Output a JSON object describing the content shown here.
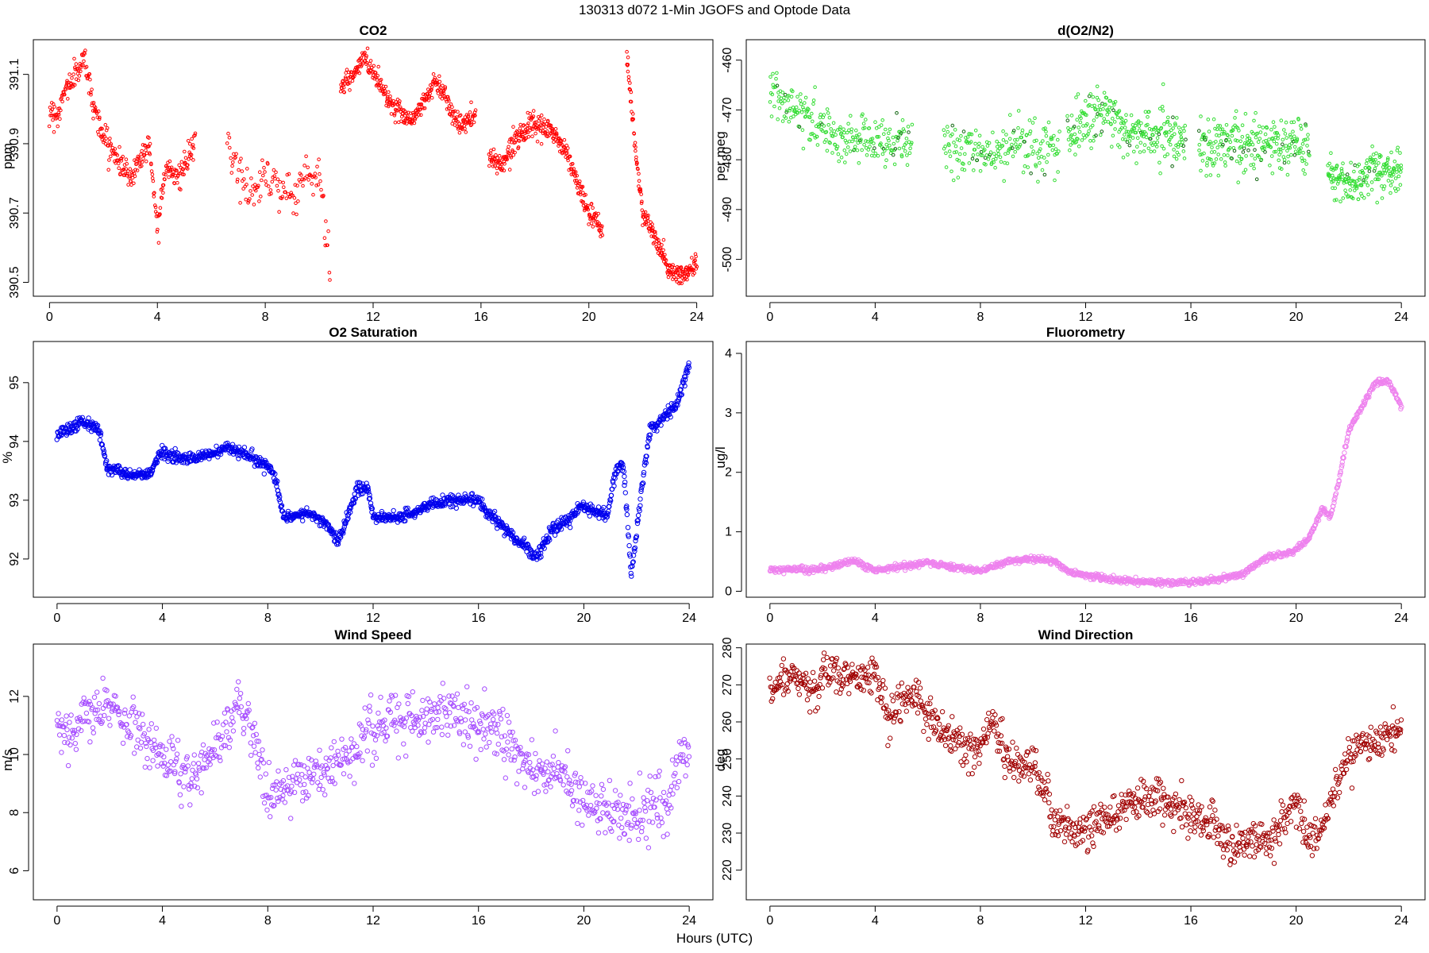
{
  "title": "130313   d072   1-Min  JGOFS and Optode Data",
  "xlabel": "Hours (UTC)",
  "chart_data": [
    {
      "type": "scatter",
      "title": "CO2",
      "ylabel": "ppm",
      "color": "#ff0000",
      "xlim": [
        -0.6,
        24.6
      ],
      "ylim": [
        390.46,
        391.2
      ],
      "xticks": [
        0,
        4,
        8,
        12,
        16,
        20,
        24
      ],
      "yticks": [
        390.5,
        390.7,
        390.9,
        391.1
      ],
      "ytick_labels": [
        "390.5",
        "390.7",
        "390.9",
        "391.1"
      ],
      "ylabels_rotated": true,
      "segments": [
        {
          "x": [
            0.0,
            0.3,
            0.6,
            1.0,
            1.3,
            1.6,
            2.0,
            2.5,
            3.0,
            3.3,
            3.7,
            4.0,
            4.3,
            4.8,
            5.4
          ],
          "y": [
            391.0,
            390.98,
            391.06,
            391.1,
            391.15,
            391.02,
            390.92,
            390.86,
            390.8,
            390.85,
            390.9,
            390.66,
            390.84,
            390.8,
            390.9
          ],
          "noise": 0.03,
          "n": 320
        },
        {
          "x": [
            6.6,
            7.0,
            7.5,
            8.0,
            8.5,
            9.0,
            9.5,
            10.0,
            10.4
          ],
          "y": [
            390.9,
            390.82,
            390.75,
            390.82,
            390.78,
            390.74,
            390.82,
            390.8,
            390.56
          ],
          "noise": 0.05,
          "n": 130
        },
        {
          "x": [
            10.8,
            11.3,
            11.7,
            12.2,
            12.8,
            13.5,
            14.3,
            14.6,
            15.2,
            15.8
          ],
          "y": [
            391.06,
            391.1,
            391.15,
            391.08,
            391.0,
            390.97,
            391.08,
            391.05,
            390.95,
            390.98
          ],
          "noise": 0.025,
          "n": 330
        },
        {
          "x": [
            16.3,
            16.8,
            17.3,
            17.8,
            18.6,
            19.2,
            19.6,
            20.0,
            20.5
          ],
          "y": [
            390.86,
            390.84,
            390.92,
            390.95,
            390.94,
            390.87,
            390.78,
            390.7,
            390.65
          ],
          "noise": 0.025,
          "n": 300
        },
        {
          "x": [
            21.4,
            21.7,
            22.0,
            22.5,
            23.0,
            23.5,
            24.0
          ],
          "y": [
            391.17,
            390.9,
            390.7,
            390.62,
            390.53,
            390.52,
            390.55
          ],
          "noise": 0.025,
          "n": 210
        }
      ]
    },
    {
      "type": "scatter",
      "title": "d(O2/N2)",
      "ylabel": "per meg",
      "color": "#33dd33",
      "highlight_color": "#116611",
      "xlim": [
        -0.9,
        24.9
      ],
      "ylim": [
        -507.4,
        -455.9
      ],
      "xticks": [
        0,
        4,
        8,
        12,
        16,
        20,
        24
      ],
      "yticks": [
        -500,
        -490,
        -480,
        -470,
        -460
      ],
      "ytick_labels": [
        "-500",
        "-490",
        "-480",
        "-470",
        "-460"
      ],
      "ylabels_rotated": true,
      "segments": [
        {
          "x": [
            0.0,
            1.0,
            2.0,
            3.0,
            4.0,
            5.4
          ],
          "y": [
            -466,
            -470,
            -474,
            -476,
            -476,
            -477
          ],
          "noise": 4,
          "n": 260
        },
        {
          "x": [
            6.6,
            8.0,
            10.0,
            11.0
          ],
          "y": [
            -478,
            -478,
            -477,
            -478
          ],
          "noise": 4.5,
          "n": 190
        },
        {
          "x": [
            11.3,
            12.5,
            13.5,
            15.0,
            15.8
          ],
          "y": [
            -476,
            -470,
            -474,
            -475,
            -476
          ],
          "noise": 4.5,
          "n": 260
        },
        {
          "x": [
            16.3,
            17.5,
            18.5,
            20.0,
            20.5
          ],
          "y": [
            -477,
            -477,
            -477,
            -477,
            -478
          ],
          "noise": 4.5,
          "n": 250
        },
        {
          "x": [
            21.2,
            22.0,
            23.0,
            24.0
          ],
          "y": [
            -483,
            -485,
            -482,
            -482
          ],
          "noise": 3.5,
          "n": 190
        }
      ]
    },
    {
      "type": "scatter",
      "title": "O2 Saturation",
      "ylabel": "%",
      "color": "#0000ee",
      "xlim": [
        -0.9,
        24.9
      ],
      "ylim": [
        91.35,
        95.7
      ],
      "xticks": [
        0,
        4,
        8,
        12,
        16,
        20,
        24
      ],
      "yticks": [
        92,
        93,
        94,
        95
      ],
      "ytick_labels": [
        "92",
        "93",
        "94",
        "95"
      ],
      "ylabels_rotated": true,
      "segments": [
        {
          "x": [
            0.0,
            1.0,
            1.6,
            1.9,
            3.0,
            3.6,
            3.9,
            5.0,
            6.0,
            6.5,
            7.5,
            8.2,
            8.6,
            9.5,
            10.2,
            10.7,
            11.0,
            11.4,
            11.8,
            12.0,
            13.0,
            14.0,
            15.0,
            16.0,
            16.3,
            16.8,
            17.5,
            18.2,
            18.8,
            19.5,
            19.9,
            20.3,
            20.9,
            21.2,
            21.5,
            21.8,
            22.0,
            22.5,
            23.0,
            23.5,
            24.0
          ],
          "y": [
            94.1,
            94.35,
            94.2,
            93.55,
            93.4,
            93.5,
            93.8,
            93.7,
            93.8,
            93.9,
            93.7,
            93.5,
            92.7,
            92.8,
            92.6,
            92.3,
            92.7,
            93.2,
            93.2,
            92.7,
            92.7,
            92.9,
            93.0,
            93.0,
            92.8,
            92.6,
            92.3,
            92.05,
            92.5,
            92.7,
            92.9,
            92.85,
            92.75,
            93.5,
            93.6,
            91.7,
            92.5,
            94.2,
            94.4,
            94.6,
            95.3
          ],
          "noise": 0.08,
          "n": 1400
        }
      ]
    },
    {
      "type": "scatter",
      "title": "Fluorometry",
      "ylabel": "ug/l",
      "color": "#ee82ee",
      "xlim": [
        -0.9,
        24.9
      ],
      "ylim": [
        -0.1,
        4.2
      ],
      "xticks": [
        0,
        4,
        8,
        12,
        16,
        20,
        24
      ],
      "yticks": [
        0,
        1,
        2,
        3,
        4
      ],
      "ytick_labels": [
        "0",
        "1",
        "2",
        "3",
        "4"
      ],
      "ylabels_rotated": false,
      "segments": [
        {
          "x": [
            0.0,
            2.0,
            3.2,
            4.0,
            5.0,
            6.0,
            7.0,
            8.0,
            9.0,
            10.0,
            10.8,
            11.5,
            12.0,
            13.0,
            14.0,
            15.0,
            16.0,
            17.0,
            18.0,
            18.8,
            19.5,
            20.0,
            20.5,
            21.0,
            21.3,
            21.6,
            22.0,
            22.5,
            23.0,
            23.5,
            24.0
          ],
          "y": [
            0.37,
            0.37,
            0.52,
            0.35,
            0.42,
            0.48,
            0.4,
            0.34,
            0.5,
            0.55,
            0.5,
            0.3,
            0.28,
            0.2,
            0.16,
            0.14,
            0.16,
            0.2,
            0.3,
            0.55,
            0.62,
            0.7,
            0.9,
            1.4,
            1.25,
            1.8,
            2.7,
            3.1,
            3.5,
            3.55,
            3.1
          ],
          "noise": 0.04,
          "n": 1200
        }
      ]
    },
    {
      "type": "scatter",
      "title": "Wind Speed",
      "ylabel": "m/s",
      "color": "#a64dff",
      "xlim": [
        -0.9,
        24.9
      ],
      "ylim": [
        5.0,
        13.8
      ],
      "xticks": [
        0,
        4,
        8,
        12,
        16,
        20,
        24
      ],
      "yticks": [
        6,
        8,
        10,
        12
      ],
      "ytick_labels": [
        "6",
        "8",
        "10",
        "12"
      ],
      "ylabels_rotated": true,
      "segments": [
        {
          "x": [
            0.0,
            1.0,
            1.8,
            2.5,
            3.2,
            4.0,
            5.0,
            6.0,
            6.8,
            7.5,
            8.0,
            9.0,
            10.0,
            10.5,
            11.0,
            12.0,
            13.0,
            14.0,
            15.0,
            15.8,
            16.5,
            17.0,
            18.0,
            19.0,
            20.0,
            21.0,
            22.0,
            23.0,
            24.0
          ],
          "y": [
            11.0,
            11.0,
            11.8,
            11.2,
            10.8,
            10.0,
            9.2,
            10.0,
            11.5,
            10.8,
            8.5,
            9.0,
            9.5,
            10.0,
            9.8,
            11.0,
            11.2,
            11.3,
            11.5,
            11.0,
            11.0,
            10.5,
            9.5,
            9.2,
            8.5,
            8.0,
            8.0,
            8.3,
            10.0
          ],
          "noise": 0.8,
          "n": 900
        }
      ]
    },
    {
      "type": "scatter",
      "title": "Wind Direction",
      "ylabel": "deg",
      "color": "#a00000",
      "xlim": [
        -0.9,
        24.9
      ],
      "ylim": [
        212,
        281
      ],
      "xticks": [
        0,
        4,
        8,
        12,
        16,
        20,
        24
      ],
      "yticks": [
        220,
        230,
        240,
        250,
        260,
        270,
        280
      ],
      "ytick_labels": [
        "220",
        "230",
        "240",
        "250",
        "260",
        "270",
        "280"
      ],
      "ylabels_rotated": true,
      "segments": [
        {
          "x": [
            0.0,
            1.0,
            1.8,
            2.0,
            3.0,
            4.0,
            4.5,
            5.0,
            5.5,
            6.0,
            7.0,
            8.0,
            8.5,
            9.0,
            10.0,
            10.5,
            11.0,
            12.0,
            13.0,
            14.0,
            15.0,
            16.0,
            17.0,
            17.5,
            18.0,
            19.0,
            19.5,
            20.0,
            20.5,
            21.0,
            22.0,
            23.0,
            24.0
          ],
          "y": [
            268,
            272,
            268,
            274,
            273,
            272,
            262,
            266,
            268,
            262,
            256,
            252,
            262,
            250,
            248,
            240,
            232,
            230,
            235,
            238,
            240,
            234,
            232,
            226,
            229,
            228,
            234,
            240,
            228,
            232,
            250,
            255,
            258
          ],
          "noise": 4.5,
          "n": 1000
        }
      ]
    }
  ]
}
